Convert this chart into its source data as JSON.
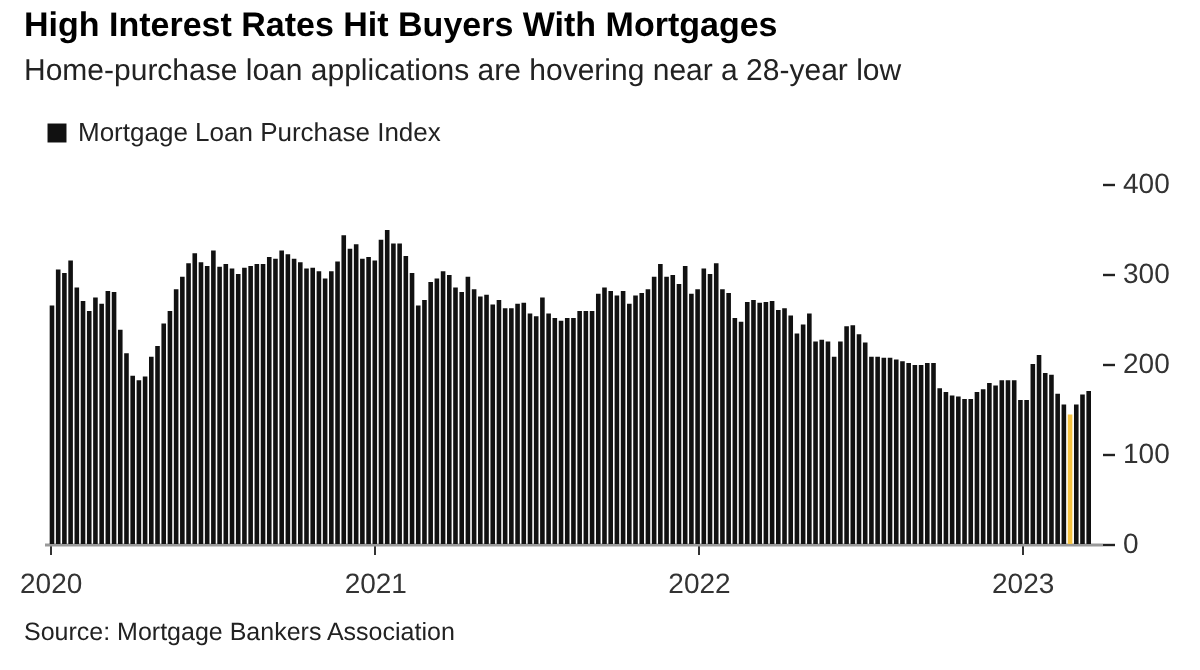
{
  "chart_data": {
    "type": "bar",
    "title": "High Interest Rates Hit Buyers With Mortgages",
    "subtitle": "Home-purchase loan applications are hovering near a 28-year low",
    "annotations": [
      "Source: Mortgage Bankers Association"
    ],
    "x": [
      "2020-01-03",
      "2020-01-10",
      "2020-01-17",
      "2020-01-24",
      "2020-01-31",
      "2020-02-07",
      "2020-02-14",
      "2020-02-21",
      "2020-02-28",
      "2020-03-06",
      "2020-03-13",
      "2020-03-20",
      "2020-03-27",
      "2020-04-03",
      "2020-04-10",
      "2020-04-17",
      "2020-04-24",
      "2020-05-01",
      "2020-05-08",
      "2020-05-15",
      "2020-05-22",
      "2020-05-29",
      "2020-06-05",
      "2020-06-12",
      "2020-06-19",
      "2020-06-26",
      "2020-07-03",
      "2020-07-10",
      "2020-07-17",
      "2020-07-24",
      "2020-07-31",
      "2020-08-07",
      "2020-08-14",
      "2020-08-21",
      "2020-08-28",
      "2020-09-04",
      "2020-09-11",
      "2020-09-18",
      "2020-09-25",
      "2020-10-02",
      "2020-10-09",
      "2020-10-16",
      "2020-10-23",
      "2020-10-30",
      "2020-11-06",
      "2020-11-13",
      "2020-11-20",
      "2020-11-27",
      "2020-12-04",
      "2020-12-11",
      "2020-12-18",
      "2020-12-25",
      "2021-01-01",
      "2021-01-08",
      "2021-01-15",
      "2021-01-22",
      "2021-01-29",
      "2021-02-05",
      "2021-02-12",
      "2021-02-19",
      "2021-02-26",
      "2021-03-05",
      "2021-03-12",
      "2021-03-19",
      "2021-03-26",
      "2021-04-02",
      "2021-04-09",
      "2021-04-16",
      "2021-04-23",
      "2021-04-30",
      "2021-05-07",
      "2021-05-14",
      "2021-05-21",
      "2021-05-28",
      "2021-06-04",
      "2021-06-11",
      "2021-06-18",
      "2021-06-25",
      "2021-07-02",
      "2021-07-09",
      "2021-07-16",
      "2021-07-23",
      "2021-07-30",
      "2021-08-06",
      "2021-08-13",
      "2021-08-20",
      "2021-08-27",
      "2021-09-03",
      "2021-09-10",
      "2021-09-17",
      "2021-09-24",
      "2021-10-01",
      "2021-10-08",
      "2021-10-15",
      "2021-10-22",
      "2021-10-29",
      "2021-11-05",
      "2021-11-12",
      "2021-11-19",
      "2021-11-26",
      "2021-12-03",
      "2021-12-10",
      "2021-12-17",
      "2021-12-24",
      "2021-12-31",
      "2022-01-07",
      "2022-01-14",
      "2022-01-21",
      "2022-01-28",
      "2022-02-04",
      "2022-02-11",
      "2022-02-18",
      "2022-02-25",
      "2022-03-04",
      "2022-03-11",
      "2022-03-18",
      "2022-03-25",
      "2022-04-01",
      "2022-04-08",
      "2022-04-15",
      "2022-04-22",
      "2022-04-29",
      "2022-05-06",
      "2022-05-13",
      "2022-05-20",
      "2022-05-27",
      "2022-06-03",
      "2022-06-10",
      "2022-06-17",
      "2022-06-24",
      "2022-07-01",
      "2022-07-08",
      "2022-07-15",
      "2022-07-22",
      "2022-07-29",
      "2022-08-05",
      "2022-08-12",
      "2022-08-19",
      "2022-08-26",
      "2022-09-02",
      "2022-09-09",
      "2022-09-16",
      "2022-09-23",
      "2022-09-30",
      "2022-10-07",
      "2022-10-14",
      "2022-10-21",
      "2022-10-28",
      "2022-11-04",
      "2022-11-11",
      "2022-11-18",
      "2022-11-25",
      "2022-12-02",
      "2022-12-09",
      "2022-12-16",
      "2022-12-23",
      "2022-12-30",
      "2023-01-06",
      "2023-01-13",
      "2023-01-20",
      "2023-01-27",
      "2023-02-03",
      "2023-02-10",
      "2023-02-17",
      "2023-02-24",
      "2023-03-03",
      "2023-03-10",
      "2023-03-17"
    ],
    "series": [
      {
        "name": "Mortgage Loan Purchase Index",
        "color": "#111111",
        "values": [
          265,
          305,
          301,
          315,
          285,
          270,
          259,
          274,
          267,
          281,
          280,
          238,
          212,
          187,
          182,
          186,
          208,
          220,
          245,
          259,
          283,
          297,
          312,
          323,
          313,
          309,
          326,
          308,
          311,
          306,
          300,
          307,
          309,
          311,
          311,
          319,
          317,
          326,
          322,
          317,
          313,
          306,
          307,
          303,
          295,
          303,
          314,
          343,
          328,
          333,
          317,
          319,
          315,
          338,
          349,
          334,
          334,
          320,
          301,
          265,
          271,
          291,
          295,
          303,
          299,
          285,
          280,
          297,
          283,
          275,
          277,
          266,
          271,
          262,
          262,
          267,
          268,
          256,
          253,
          274,
          256,
          251,
          248,
          251,
          251,
          259,
          259,
          259,
          278,
          285,
          281,
          276,
          281,
          267,
          276,
          279,
          283,
          297,
          311,
          297,
          299,
          289,
          309,
          278,
          283,
          306,
          300,
          312,
          283,
          279,
          251,
          247,
          269,
          271,
          268,
          269,
          270,
          260,
          262,
          254,
          234,
          244,
          256,
          225,
          227,
          225,
          208,
          225,
          242,
          243,
          233,
          224,
          208,
          208,
          207,
          207,
          205,
          203,
          201,
          199,
          199,
          201,
          201,
          173,
          169,
          165,
          164,
          161,
          161,
          169,
          172,
          179,
          176,
          182,
          182,
          182,
          160,
          160,
          200,
          210,
          190,
          188,
          167,
          155,
          144,
          155,
          166,
          170
        ],
        "colors": [
          "#111111",
          "#111111",
          "#111111",
          "#111111",
          "#111111",
          "#111111",
          "#111111",
          "#111111",
          "#111111",
          "#111111",
          "#111111",
          "#111111",
          "#111111",
          "#111111",
          "#111111",
          "#111111",
          "#111111",
          "#111111",
          "#111111",
          "#111111",
          "#111111",
          "#111111",
          "#111111",
          "#111111",
          "#111111",
          "#111111",
          "#111111",
          "#111111",
          "#111111",
          "#111111",
          "#111111",
          "#111111",
          "#111111",
          "#111111",
          "#111111",
          "#111111",
          "#111111",
          "#111111",
          "#111111",
          "#111111",
          "#111111",
          "#111111",
          "#111111",
          "#111111",
          "#111111",
          "#111111",
          "#111111",
          "#111111",
          "#111111",
          "#111111",
          "#111111",
          "#111111",
          "#111111",
          "#111111",
          "#111111",
          "#111111",
          "#111111",
          "#111111",
          "#111111",
          "#111111",
          "#111111",
          "#111111",
          "#111111",
          "#111111",
          "#111111",
          "#111111",
          "#111111",
          "#111111",
          "#111111",
          "#111111",
          "#111111",
          "#111111",
          "#111111",
          "#111111",
          "#111111",
          "#111111",
          "#111111",
          "#111111",
          "#111111",
          "#111111",
          "#111111",
          "#111111",
          "#111111",
          "#111111",
          "#111111",
          "#111111",
          "#111111",
          "#111111",
          "#111111",
          "#111111",
          "#111111",
          "#111111",
          "#111111",
          "#111111",
          "#111111",
          "#111111",
          "#111111",
          "#111111",
          "#111111",
          "#111111",
          "#111111",
          "#111111",
          "#111111",
          "#111111",
          "#111111",
          "#111111",
          "#111111",
          "#111111",
          "#111111",
          "#111111",
          "#111111",
          "#111111",
          "#111111",
          "#111111",
          "#111111",
          "#111111",
          "#111111",
          "#111111",
          "#111111",
          "#111111",
          "#111111",
          "#111111",
          "#111111",
          "#111111",
          "#111111",
          "#111111",
          "#111111",
          "#111111",
          "#111111",
          "#111111",
          "#111111",
          "#111111",
          "#111111",
          "#111111",
          "#111111",
          "#111111",
          "#111111",
          "#111111",
          "#111111",
          "#111111",
          "#111111",
          "#111111",
          "#111111",
          "#111111",
          "#111111",
          "#111111",
          "#111111",
          "#111111",
          "#111111",
          "#111111",
          "#111111",
          "#111111",
          "#111111",
          "#111111",
          "#111111",
          "#111111",
          "#111111",
          "#111111",
          "#111111",
          "#111111",
          "#111111",
          "#111111",
          "#111111",
          "#111111",
          "#f5c342",
          "#111111",
          "#111111",
          "#111111"
        ]
      }
    ],
    "xlim": [
      "2019-12-25",
      "2023-04-01"
    ],
    "xticks": [
      {
        "value": "2020",
        "label": "2020"
      },
      {
        "value": "2021",
        "label": "2021"
      },
      {
        "value": "2022",
        "label": "2022"
      },
      {
        "value": "2023",
        "label": "2023"
      }
    ],
    "ylim": [
      0,
      400
    ],
    "yticks": [
      0,
      100,
      200,
      300,
      400
    ],
    "grid": false,
    "legend": "top left"
  }
}
